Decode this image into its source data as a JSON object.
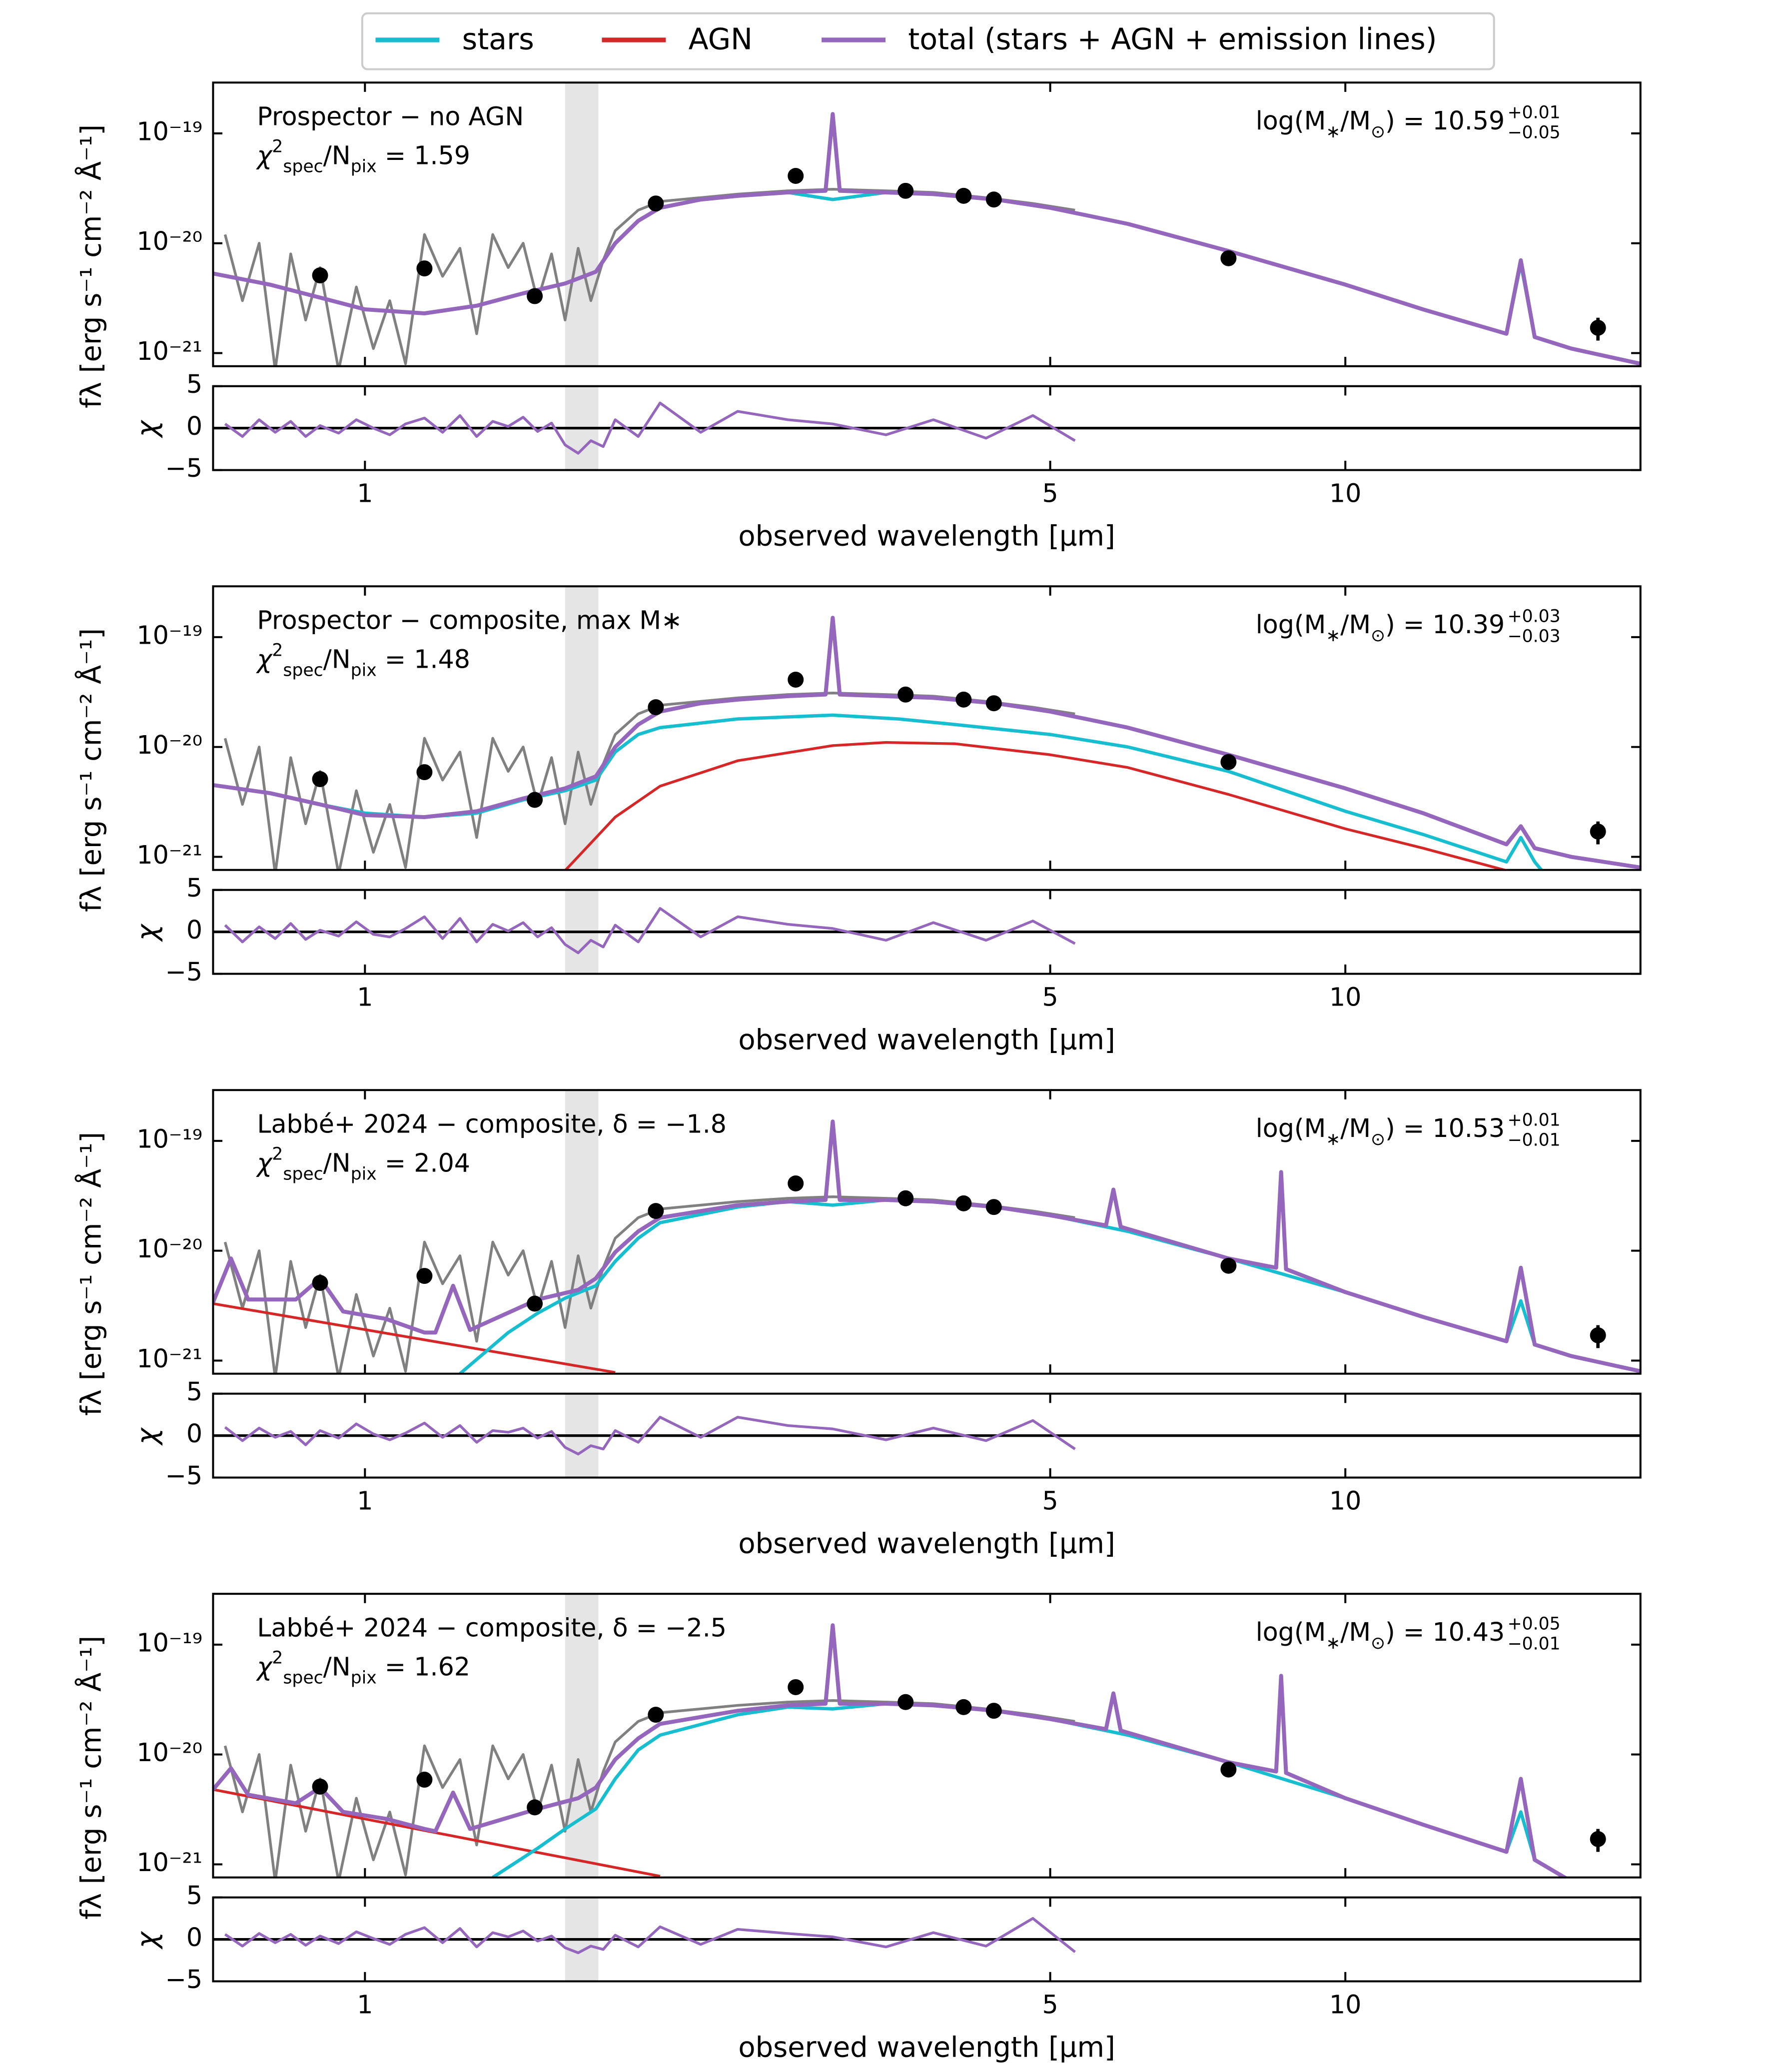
{
  "chart_data": {
    "type": "line",
    "legend": [
      {
        "name": "stars",
        "color": "#17becf"
      },
      {
        "name": "AGN",
        "color": "#d62728"
      },
      {
        "name": "total (stars + AGN + emission lines)",
        "color": "#9467bd"
      }
    ],
    "xlabel": "observed wavelength [μm]",
    "ylabel": "fλ [erg s⁻¹ cm⁻² Å⁻¹]",
    "residual_ylabel": "χ",
    "log_x": true,
    "log_y": true,
    "xlim": [
      0.7,
      20
    ],
    "xticks": [
      1,
      5,
      10
    ],
    "ylim": [
      7.6e-22,
      2.9e-19
    ],
    "yticks": [
      {
        "value": 1e-21,
        "label": "10⁻²¹"
      },
      {
        "value": 1e-20,
        "label": "10⁻²⁰"
      },
      {
        "value": 1e-19,
        "label": "10⁻¹⁹"
      }
    ],
    "residual_ylim": [
      -5,
      5
    ],
    "residual_yticks": [
      {
        "value": -5,
        "label": "−5"
      },
      0,
      5
    ],
    "shaded_xrange": [
      1.6,
      1.73
    ],
    "chi2_text": {
      "symbol": "χ",
      "sup": "2",
      "sub": "spec",
      "mid": "/N",
      "sub2": "pix",
      "eq": " = "
    },
    "mass_text": {
      "pre": "log(M",
      "sub": "∗",
      "mid": "/M",
      "sub2": "⊙",
      "eq": ") = "
    },
    "photometry": {
      "color": "#000000",
      "x": [
        0.9,
        1.15,
        1.49,
        1.98,
        2.75,
        3.56,
        4.08,
        4.38,
        7.6,
        18.1
      ],
      "values": [
        5.1e-21,
        5.9e-21,
        3.3e-21,
        2.3e-20,
        4.1e-20,
        3e-20,
        2.7e-20,
        2.5e-20,
        7.3e-21,
        1.7e-21
      ],
      "errors": [
        0,
        0,
        0,
        0,
        0,
        0,
        0,
        0,
        0,
        4e-22
      ]
    },
    "spectrum": {
      "color": "#808080",
      "x": [
        0.72,
        0.75,
        0.78,
        0.81,
        0.84,
        0.87,
        0.9,
        0.94,
        0.98,
        1.02,
        1.06,
        1.1,
        1.15,
        1.2,
        1.25,
        1.3,
        1.35,
        1.4,
        1.45,
        1.5,
        1.55,
        1.6,
        1.65,
        1.7,
        1.75,
        1.8,
        1.9,
        2.0,
        2.2,
        2.4,
        2.7,
        3.0,
        3.4,
        3.8,
        4.3,
        4.8,
        5.3
      ],
      "values": [
        1.2e-20,
        3e-21,
        1e-20,
        7e-22,
        8e-21,
        2e-21,
        6e-21,
        7e-22,
        4e-21,
        1.1e-21,
        3e-21,
        8e-22,
        1.2e-20,
        5e-21,
        9e-21,
        1.5e-21,
        1.2e-20,
        6e-21,
        1e-20,
        3e-21,
        8e-21,
        2e-21,
        9e-21,
        3e-21,
        7e-21,
        1.3e-20,
        2e-20,
        2.4e-20,
        2.6e-20,
        2.8e-20,
        3e-20,
        3.1e-20,
        3e-20,
        2.9e-20,
        2.6e-20,
        2.3e-20,
        2e-20
      ]
    },
    "panels": [
      {
        "label": "Prospector − no AGN",
        "chi2": 1.59,
        "logmass": 10.59,
        "logmass_err": [
          "+0.01",
          "−0.05"
        ],
        "stars": {
          "x": [
            0.7,
            0.8,
            0.9,
            1.0,
            1.15,
            1.3,
            1.45,
            1.6,
            1.72,
            1.8,
            1.9,
            2.0,
            2.2,
            2.4,
            2.7,
            3.0,
            3.4,
            3.8,
            4.4,
            5.0,
            6.0,
            7.6,
            10,
            12,
            14.6,
            15.1,
            15.6,
            17,
            20
          ],
          "values": [
            5.3e-21,
            4.2e-21,
            3.2e-21,
            2.5e-21,
            2.3e-21,
            2.7e-21,
            3.5e-21,
            4.3e-21,
            5.5e-21,
            1e-20,
            1.6e-20,
            2.1e-20,
            2.5e-20,
            2.7e-20,
            2.9e-20,
            2.5e-20,
            2.9e-20,
            2.8e-20,
            2.5e-20,
            2.1e-20,
            1.5e-20,
            8.5e-21,
            4.2e-21,
            2.5e-21,
            1.5e-21,
            6.5e-21,
            1.4e-21,
            1.1e-21,
            8e-22
          ]
        },
        "total": {
          "x": [
            0.7,
            0.8,
            0.9,
            1.0,
            1.15,
            1.3,
            1.45,
            1.6,
            1.72,
            1.8,
            1.9,
            2.0,
            2.2,
            2.4,
            2.7,
            2.95,
            3.0,
            3.05,
            3.4,
            3.8,
            4.4,
            5.0,
            6.0,
            7.6,
            10,
            12,
            14.6,
            15.1,
            15.6,
            17,
            20
          ],
          "values": [
            5.3e-21,
            4.2e-21,
            3.2e-21,
            2.5e-21,
            2.3e-21,
            2.7e-21,
            3.5e-21,
            4.3e-21,
            5.5e-21,
            1e-20,
            1.6e-20,
            2.1e-20,
            2.5e-20,
            2.7e-20,
            2.9e-20,
            3e-20,
            1.5e-19,
            3e-20,
            2.9e-20,
            2.8e-20,
            2.5e-20,
            2.1e-20,
            1.5e-20,
            8.5e-21,
            4.2e-21,
            2.5e-21,
            1.5e-21,
            7e-21,
            1.4e-21,
            1.1e-21,
            8e-22
          ]
        },
        "residuals": [
          0.5,
          -1,
          1,
          -0.5,
          0.8,
          -1,
          0.3,
          -0.6,
          1,
          0,
          -0.8,
          0.5,
          1.2,
          -0.5,
          1.5,
          -1,
          0.8,
          0.2,
          1.3,
          -0.4,
          0.6,
          -2,
          -3,
          -1.5,
          -2.2,
          1,
          -1,
          3,
          -0.5,
          2,
          1,
          0.5,
          -0.8,
          1,
          -1.2,
          1.5,
          -1.5
        ]
      },
      {
        "label": "Prospector − composite, max M∗",
        "chi2": 1.48,
        "logmass": 10.39,
        "logmass_err": [
          "+0.03",
          "−0.03"
        ],
        "agn": {
          "x": [
            1.6,
            1.8,
            2.0,
            2.4,
            3.0,
            3.4,
            4.0,
            5.0,
            6.0,
            7.6,
            10,
            12,
            14.6
          ],
          "values": [
            7.5e-22,
            2.3e-21,
            4.4e-21,
            7.5e-21,
            1.03e-20,
            1.1e-20,
            1.07e-20,
            8.5e-21,
            6.5e-21,
            3.7e-21,
            1.8e-21,
            1.2e-21,
            7.5e-22
          ]
        },
        "stars": {
          "x": [
            0.7,
            0.8,
            0.9,
            1.0,
            1.15,
            1.3,
            1.45,
            1.6,
            1.72,
            1.8,
            1.9,
            2.0,
            2.4,
            3.0,
            3.5,
            4.0,
            5.0,
            6.0,
            7.6,
            10,
            12,
            14.6,
            15.1,
            15.6,
            16.2
          ],
          "values": [
            4.5e-21,
            3.8e-21,
            3e-21,
            2.5e-21,
            2.3e-21,
            2.5e-21,
            3.3e-21,
            4e-21,
            5e-21,
            9e-21,
            1.3e-20,
            1.5e-20,
            1.8e-20,
            1.95e-20,
            1.8e-20,
            1.6e-20,
            1.3e-20,
            1e-20,
            6e-21,
            2.6e-21,
            1.6e-21,
            9e-22,
            1.5e-21,
            9e-22,
            6e-22
          ]
        },
        "total": {
          "x": [
            0.7,
            0.8,
            0.9,
            1.0,
            1.15,
            1.3,
            1.45,
            1.6,
            1.72,
            1.8,
            1.9,
            2.0,
            2.2,
            2.4,
            2.7,
            2.95,
            3.0,
            3.05,
            3.4,
            3.8,
            4.4,
            5.0,
            6.0,
            7.6,
            10,
            12,
            14.6,
            15.1,
            15.6,
            17,
            20
          ],
          "values": [
            4.5e-21,
            3.8e-21,
            3e-21,
            2.4e-21,
            2.3e-21,
            2.6e-21,
            3.4e-21,
            4.2e-21,
            5.4e-21,
            1e-20,
            1.6e-20,
            2.1e-20,
            2.5e-20,
            2.7e-20,
            2.9e-20,
            3e-20,
            1.5e-19,
            3e-20,
            2.9e-20,
            2.8e-20,
            2.5e-20,
            2.1e-20,
            1.5e-20,
            8.5e-21,
            4.2e-21,
            2.5e-21,
            1.3e-21,
            1.9e-21,
            1.2e-21,
            1e-21,
            8e-22
          ]
        },
        "residuals": [
          0.8,
          -1.2,
          0.6,
          -0.8,
          1,
          -0.9,
          0.2,
          -0.5,
          1.2,
          -0.3,
          -0.6,
          0.4,
          1.8,
          -0.8,
          1.6,
          -1.2,
          0.9,
          0.1,
          1.1,
          -0.6,
          0.5,
          -1.5,
          -2.5,
          -1,
          -1.8,
          0.8,
          -1.2,
          2.8,
          -0.6,
          1.8,
          0.9,
          0.4,
          -1,
          1.1,
          -1,
          1.3,
          -1.4
        ]
      },
      {
        "label": "Labbé+ 2024 − composite, δ = −1.8",
        "chi2": 2.04,
        "logmass": 10.53,
        "logmass_err": [
          "+0.01",
          "−0.01"
        ],
        "agn": {
          "x": [
            0.7,
            1.8
          ],
          "values": [
            3.3e-21,
            7.8e-22
          ]
        },
        "stars": {
          "x": [
            1.25,
            1.4,
            1.5,
            1.6,
            1.72,
            1.8,
            1.9,
            2.0,
            2.4,
            2.7,
            3.0,
            3.4,
            3.8,
            4.4,
            5.0,
            6.0,
            7.6,
            10,
            12,
            14.6,
            15.1,
            15.6,
            17,
            20
          ],
          "values": [
            7.6e-22,
            1.8e-21,
            2.7e-21,
            3.7e-21,
            4.8e-21,
            8e-21,
            1.3e-20,
            1.8e-20,
            2.5e-20,
            2.8e-20,
            2.6e-20,
            2.9e-20,
            2.8e-20,
            2.5e-20,
            2.1e-20,
            1.5e-20,
            8.5e-21,
            4.2e-21,
            2.5e-21,
            1.5e-21,
            3.5e-21,
            1.4e-21,
            1.1e-21,
            8e-22
          ]
        },
        "total": {
          "x": [
            0.7,
            0.73,
            0.76,
            0.85,
            0.9,
            0.95,
            1.05,
            1.15,
            1.18,
            1.23,
            1.28,
            1.5,
            1.65,
            1.72,
            1.8,
            1.9,
            2.0,
            2.4,
            2.7,
            2.95,
            3.0,
            3.05,
            3.4,
            3.8,
            4.4,
            5.0,
            5.7,
            5.8,
            5.9,
            7.6,
            8.5,
            8.6,
            8.7,
            10,
            12,
            14.6,
            15.1,
            15.6,
            17,
            20
          ],
          "values": [
            3.4e-21,
            8.5e-21,
            3.6e-21,
            3.6e-21,
            5.6e-21,
            2.8e-21,
            2.4e-21,
            1.8e-21,
            1.8e-21,
            4.8e-21,
            1.9e-21,
            3.6e-21,
            4.4e-21,
            5.6e-21,
            9.7e-21,
            1.5e-20,
            2e-20,
            2.6e-20,
            2.8e-20,
            2.9e-20,
            1.5e-19,
            2.9e-20,
            2.9e-20,
            2.8e-20,
            2.5e-20,
            2.1e-20,
            1.7e-20,
            3.6e-20,
            1.65e-20,
            8.5e-21,
            7e-21,
            5.2e-20,
            6.8e-21,
            4.2e-21,
            2.5e-21,
            1.5e-21,
            7e-21,
            1.4e-21,
            1.1e-21,
            8e-22
          ]
        },
        "residuals": [
          1,
          -0.6,
          0.9,
          -0.2,
          0.5,
          -1.1,
          0.6,
          -0.3,
          1.4,
          0.2,
          -0.5,
          0.3,
          1.5,
          -0.2,
          1.2,
          -0.8,
          0.6,
          0.4,
          0.9,
          -0.3,
          0.5,
          -1.4,
          -2.2,
          -1.2,
          -1.6,
          0.6,
          -0.8,
          2.2,
          -0.2,
          2.2,
          1.2,
          0.8,
          -0.5,
          0.9,
          -0.6,
          1.8,
          -1.6
        ]
      },
      {
        "label": "Labbé+ 2024 − composite, δ = −2.5",
        "chi2": 1.62,
        "logmass": 10.43,
        "logmass_err": [
          "+0.05",
          "−0.01"
        ],
        "agn": {
          "x": [
            0.7,
            2.0
          ],
          "values": [
            4.8e-21,
            7.8e-22
          ]
        },
        "stars": {
          "x": [
            1.35,
            1.5,
            1.6,
            1.72,
            1.8,
            1.9,
            2.0,
            2.4,
            2.7,
            3.0,
            3.4,
            3.8,
            4.4,
            5.0,
            6.0,
            7.6,
            10,
            12,
            14.6,
            15.1,
            15.6,
            17,
            20
          ],
          "values": [
            7.6e-22,
            1.4e-21,
            2.1e-21,
            3.2e-21,
            6e-21,
            1.1e-20,
            1.5e-20,
            2.3e-20,
            2.7e-20,
            2.6e-20,
            2.9e-20,
            2.8e-20,
            2.5e-20,
            2.1e-20,
            1.5e-20,
            8.5e-21,
            4e-21,
            2.3e-21,
            1.3e-21,
            3e-21,
            1.1e-21,
            7e-22,
            5e-22
          ]
        },
        "total": {
          "x": [
            0.7,
            0.73,
            0.76,
            0.85,
            0.9,
            0.95,
            1.05,
            1.15,
            1.18,
            1.23,
            1.28,
            1.5,
            1.65,
            1.72,
            1.8,
            1.9,
            2.0,
            2.4,
            2.7,
            2.95,
            3.0,
            3.05,
            3.4,
            3.8,
            4.4,
            5.0,
            5.7,
            5.8,
            5.9,
            7.6,
            8.5,
            8.6,
            8.7,
            10,
            12,
            14.6,
            15.1,
            15.6,
            17,
            20
          ],
          "values": [
            4.8e-21,
            7.5e-21,
            4.3e-21,
            3.6e-21,
            5e-21,
            3e-21,
            2.6e-21,
            2.1e-21,
            2e-21,
            4.5e-21,
            2.1e-21,
            3.2e-21,
            4e-21,
            5e-21,
            9e-21,
            1.4e-20,
            1.9e-20,
            2.5e-20,
            2.8e-20,
            2.9e-20,
            1.5e-19,
            2.9e-20,
            2.9e-20,
            2.8e-20,
            2.5e-20,
            2.1e-20,
            1.7e-20,
            3.6e-20,
            1.65e-20,
            8.5e-21,
            7e-21,
            5.2e-20,
            6.8e-21,
            4e-21,
            2.3e-21,
            1.3e-21,
            6e-21,
            1.1e-21,
            7e-22,
            5e-22
          ]
        },
        "residuals": [
          0.6,
          -0.8,
          0.7,
          -0.4,
          0.6,
          -0.7,
          0.4,
          -0.5,
          0.9,
          0.1,
          -0.6,
          0.6,
          1.4,
          -0.4,
          1.3,
          -0.9,
          0.8,
          0.3,
          1.0,
          -0.2,
          0.4,
          -1,
          -1.6,
          -0.8,
          -1.2,
          0.5,
          -0.9,
          1.5,
          -0.6,
          1.2,
          0.7,
          0.3,
          -0.9,
          0.8,
          -0.8,
          2.5,
          -1.5
        ]
      }
    ]
  }
}
